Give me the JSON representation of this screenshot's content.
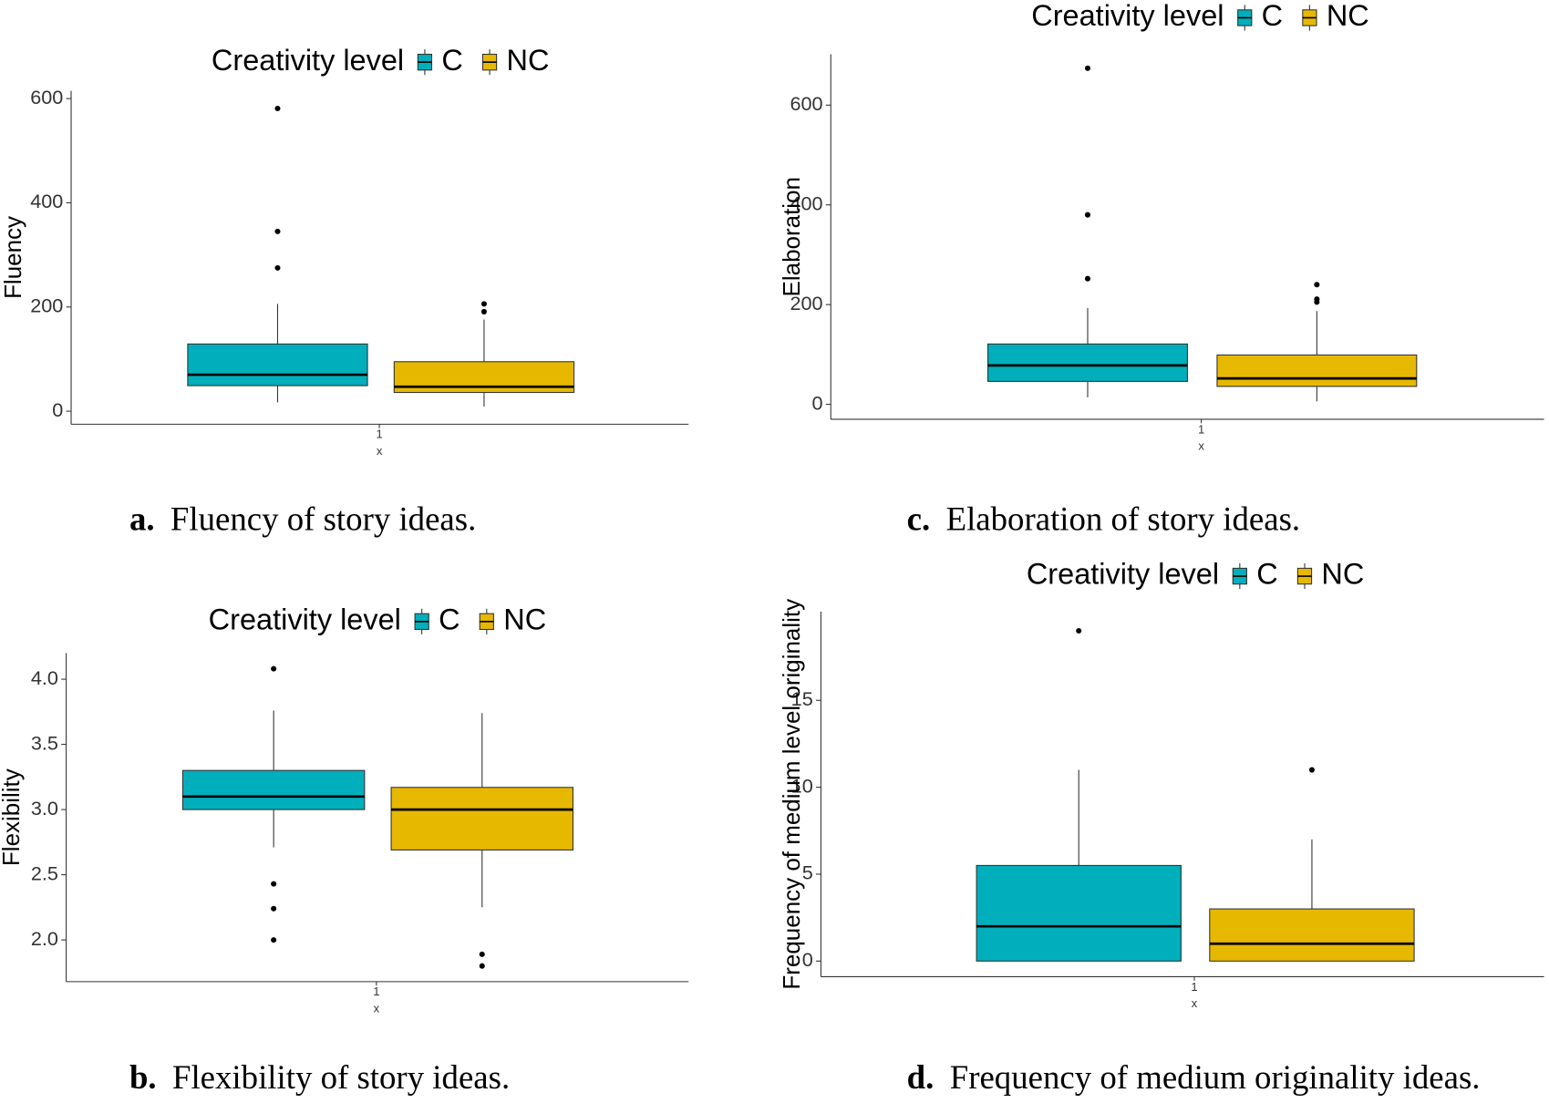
{
  "chart_data": [
    {
      "type": "box",
      "label": "a.",
      "caption": "Fluency of story ideas.",
      "legend_title": "Creativity level",
      "y_label": "Fluency",
      "x_label": "x",
      "categories": [
        "1"
      ],
      "ylim": [
        -25,
        615
      ],
      "yticks": [
        0,
        200,
        400,
        600
      ],
      "series": [
        {
          "name": "C",
          "color": "#00afbb",
          "min": 17,
          "q1": 49,
          "median": 70,
          "q3": 129,
          "max": 206,
          "outliers": [
            581,
            345,
            275
          ]
        },
        {
          "name": "NC",
          "color": "#e7b800",
          "min": 9,
          "q1": 36,
          "median": 47,
          "q3": 95,
          "max": 176,
          "outliers": [
            206,
            191
          ]
        }
      ]
    },
    {
      "type": "box",
      "label": "c.",
      "caption": "Elaboration of story ideas.",
      "legend_title": "Creativity level",
      "y_label": "Elaboration",
      "x_label": "x",
      "categories": [
        "1"
      ],
      "ylim": [
        -30,
        702
      ],
      "yticks": [
        0,
        200,
        400,
        600
      ],
      "series": [
        {
          "name": "C",
          "color": "#00afbb",
          "min": 14,
          "q1": 46,
          "median": 78,
          "q3": 121,
          "max": 193,
          "outliers": [
            674,
            380,
            252
          ]
        },
        {
          "name": "NC",
          "color": "#e7b800",
          "min": 6,
          "q1": 36,
          "median": 52,
          "q3": 99,
          "max": 187,
          "outliers": [
            240,
            211,
            205
          ]
        }
      ]
    },
    {
      "type": "box",
      "label": "b.",
      "caption": "Flexibility of story ideas.",
      "legend_title": "Creativity level",
      "y_label": "Flexibility",
      "x_label": "x",
      "categories": [
        "1"
      ],
      "ylim": [
        1.68,
        4.2
      ],
      "yticks": [
        {
          "value": 2,
          "label": "2.0"
        },
        2.5,
        {
          "value": 3,
          "label": "3.0"
        },
        3.5,
        {
          "value": 4,
          "label": "4.0"
        }
      ],
      "series": [
        {
          "name": "C",
          "color": "#00afbb",
          "min": 2.71,
          "q1": 3.0,
          "median": 3.1,
          "q3": 3.3,
          "max": 3.76,
          "outliers": [
            4.08,
            2.43,
            2.24,
            2.0
          ]
        },
        {
          "name": "NC",
          "color": "#e7b800",
          "min": 2.25,
          "q1": 2.69,
          "median": 3.0,
          "q3": 3.17,
          "max": 3.74,
          "outliers": [
            1.89,
            1.8
          ]
        }
      ]
    },
    {
      "type": "box",
      "label": "d.",
      "caption": "Frequency of medium originality ideas.",
      "legend_title": "Creativity level",
      "y_label": "Frequency of medium level originality",
      "x_label": "x",
      "categories": [
        "1"
      ],
      "ylim": [
        -0.9,
        20.1
      ],
      "yticks": [
        0,
        5,
        10,
        15
      ],
      "series": [
        {
          "name": "C",
          "color": "#00afbb",
          "min": 0,
          "q1": 0,
          "median": 2,
          "q3": 5.5,
          "max": 11,
          "outliers": [
            19
          ]
        },
        {
          "name": "NC",
          "color": "#e7b800",
          "min": 0,
          "q1": 0,
          "median": 1,
          "q3": 3,
          "max": 7,
          "outliers": [
            11
          ]
        }
      ]
    }
  ]
}
